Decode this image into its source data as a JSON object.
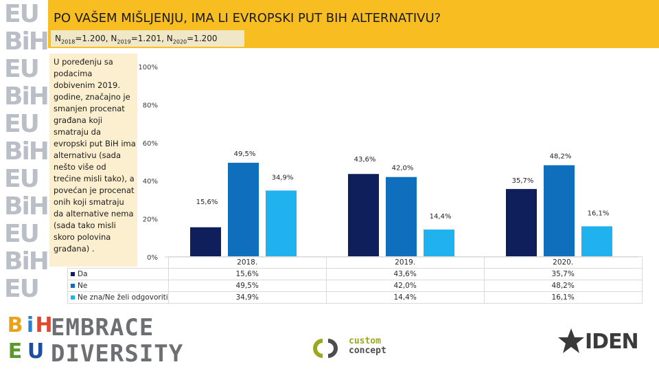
{
  "header": {
    "title": "PO VAŠEM MIŠLJENJU, IMA LI EVROPSKI PUT BIH ALTERNATIVU?",
    "sample_sizes": [
      {
        "year": "2018",
        "value": "=1.200, "
      },
      {
        "year": "2019",
        "value": "=1.201, "
      },
      {
        "year": "2020",
        "value": "=1.200"
      }
    ],
    "n_letter": "N"
  },
  "note": "U poređenju sa podacima dobivenim 2019. godine, značajno je smanjen procenat građana koji smatraju da evropski put BiH ima alternativu (sada nešto više od trećine misli tako), a povećan je procenat onih koji smatraju da alternative nema (sada tako misli skoro polovina građana) .",
  "chart_data": {
    "type": "bar",
    "categories": [
      "2018.",
      "2019.",
      "2020."
    ],
    "series": [
      {
        "name": "Da",
        "values": [
          15.6,
          43.6,
          35.7
        ],
        "labels": [
          "15,6%",
          "43,6%",
          "35,7%"
        ],
        "color": "#0f1f5c"
      },
      {
        "name": "Ne",
        "values": [
          49.5,
          42.0,
          48.2
        ],
        "labels": [
          "49,5%",
          "42,0%",
          "48,2%"
        ],
        "color": "#0f6fbd"
      },
      {
        "name": "Ne zna/Ne želi odgovoriti",
        "values": [
          34.9,
          14.4,
          16.1
        ],
        "labels": [
          "34,9%",
          "14,4%",
          "16,1%"
        ],
        "color": "#1fb2ef"
      }
    ],
    "y_ticks": [
      "0%",
      "20%",
      "40%",
      "60%",
      "80%",
      "100%"
    ],
    "ylim": [
      0,
      100
    ],
    "grid": false,
    "legend": "data-table-below"
  },
  "logos": {
    "side_pattern": [
      "EU",
      "BiH",
      "EU",
      "BiH",
      "EU",
      "BiH",
      "EU",
      "BiH",
      "EU",
      "BiH",
      "EU"
    ],
    "embrace_diversity": {
      "line1": "EMBRACE",
      "line2": "DIVERSITY",
      "tiles": [
        "B",
        "i",
        "H",
        "E",
        "U"
      ]
    },
    "custom_concept": {
      "line1": "custom",
      "line2": "concept"
    },
    "iden": {
      "text": "IDEN"
    }
  },
  "colors": {
    "title_bar": "#f7bd21",
    "note_panel": "#fbefcf"
  }
}
